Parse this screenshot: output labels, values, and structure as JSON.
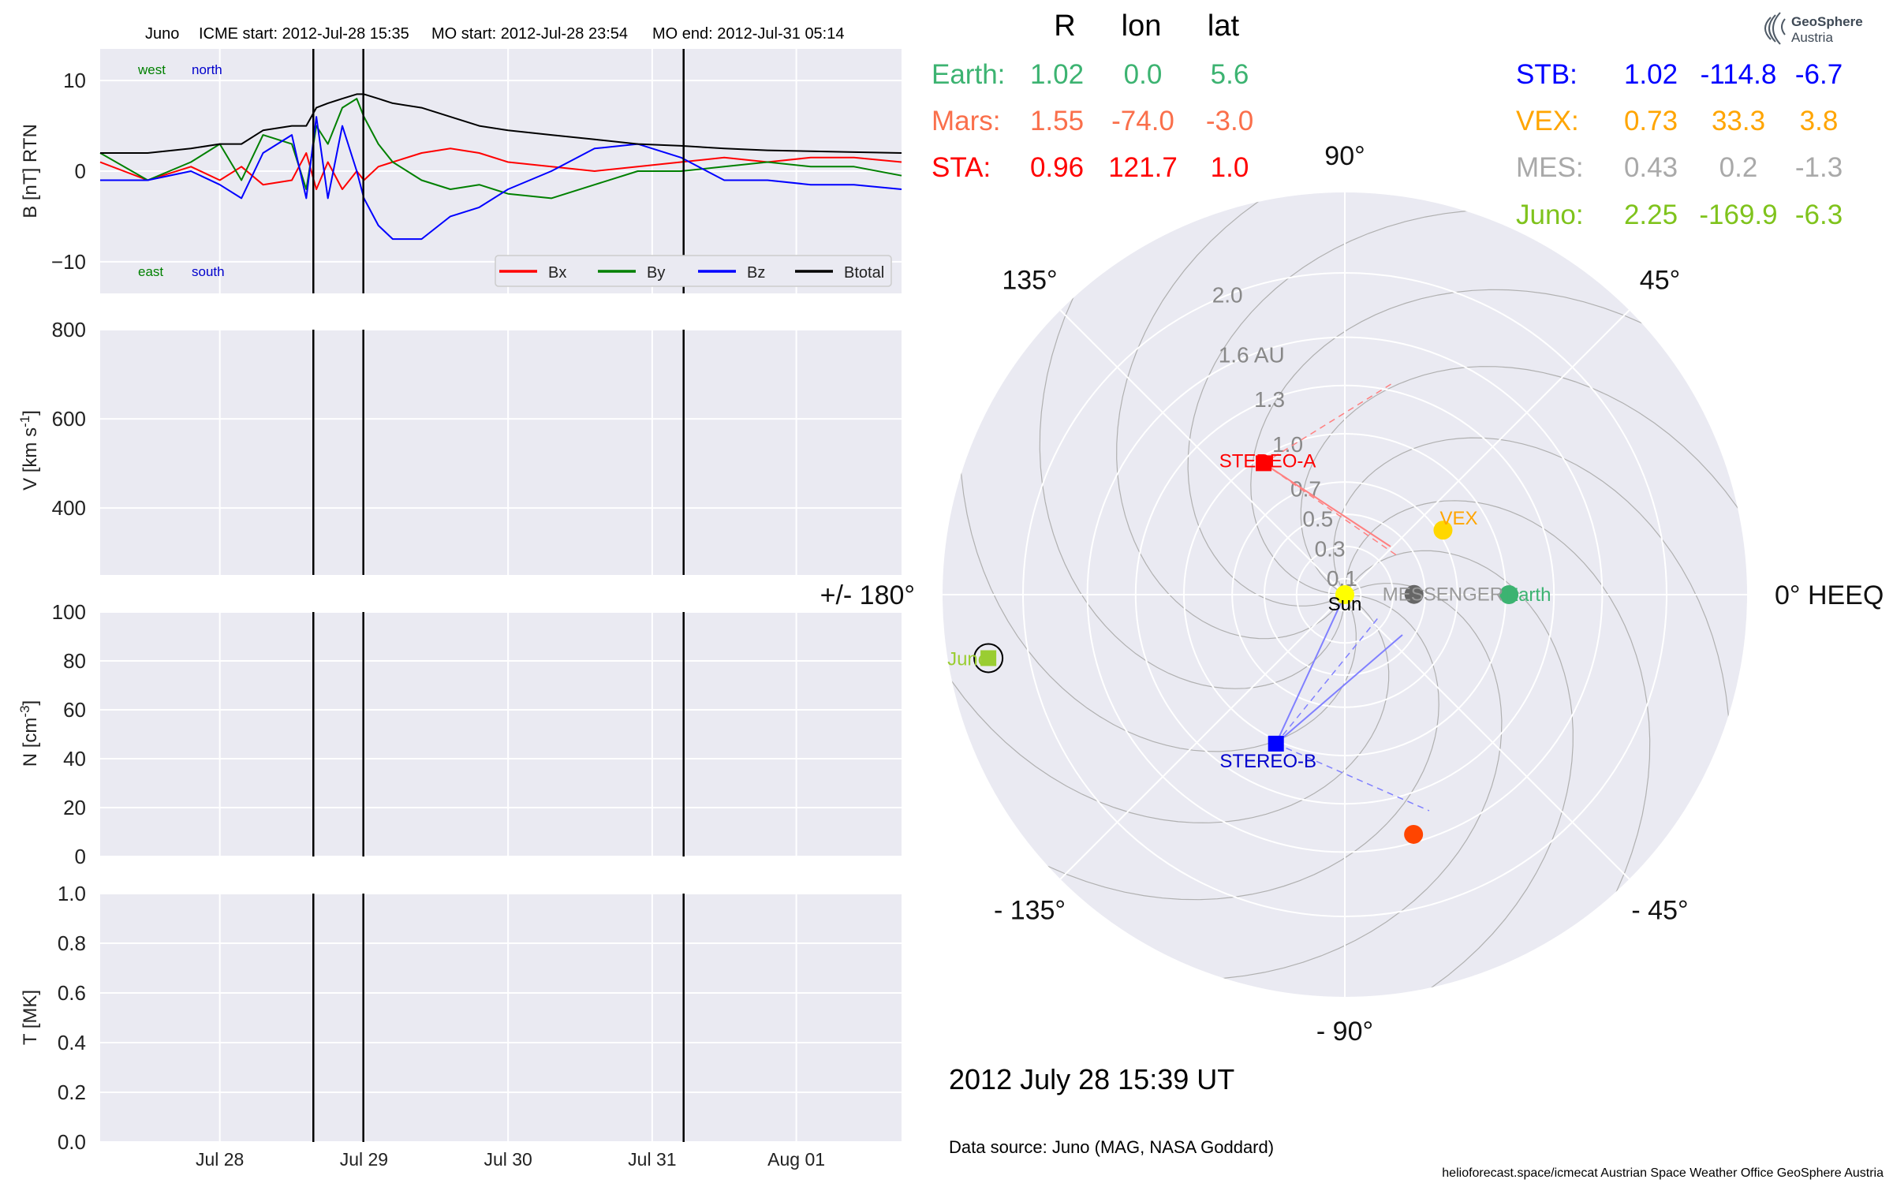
{
  "header": {
    "spacecraft": "Juno",
    "icme_start": "ICME start: 2012-Jul-28 15:35",
    "mo_start": "MO start: 2012-Jul-28 23:54",
    "mo_end": "MO end: 2012-Jul-31 05:14"
  },
  "chart_data": [
    {
      "type": "line",
      "panel": "magnetic-field",
      "ylabel": "B [nT] RTN",
      "ylim": [
        -13.5,
        13.5
      ],
      "yticks": [
        "10",
        "0",
        "−10"
      ],
      "grid": true,
      "legend_position": "lower-right",
      "corner_labels": {
        "west": "west",
        "north": "north",
        "east": "east",
        "south": "south"
      },
      "x_unit": "day of July 2012",
      "xlim": [
        27.17,
        32.73
      ],
      "x": [
        27.17,
        27.5,
        27.8,
        28.0,
        28.15,
        28.3,
        28.5,
        28.6,
        28.67,
        28.75,
        28.85,
        28.95,
        29.0,
        29.1,
        29.2,
        29.4,
        29.6,
        29.8,
        30.0,
        30.3,
        30.6,
        30.9,
        31.2,
        31.5,
        31.8,
        32.1,
        32.4,
        32.73
      ],
      "series": [
        {
          "name": "Bx",
          "color": "#ff0000",
          "values": [
            1.0,
            -1.0,
            0.5,
            -1.0,
            0.5,
            -1.5,
            -1.0,
            2.0,
            -2.0,
            1.0,
            -2.0,
            0.0,
            -1.0,
            0.5,
            1.0,
            2.0,
            2.5,
            2.0,
            1.0,
            0.5,
            0.0,
            0.5,
            1.0,
            1.5,
            1.0,
            1.5,
            1.5,
            1.0
          ]
        },
        {
          "name": "By",
          "color": "#008000",
          "values": [
            2.0,
            -1.0,
            1.0,
            3.0,
            -1.0,
            4.0,
            3.0,
            -2.0,
            5.0,
            3.0,
            7.0,
            8.0,
            6.0,
            3.0,
            1.0,
            -1.0,
            -2.0,
            -1.5,
            -2.5,
            -3.0,
            -1.5,
            0.0,
            0.0,
            0.5,
            1.0,
            0.5,
            0.5,
            -0.5
          ]
        },
        {
          "name": "Bz",
          "color": "#0000ff",
          "values": [
            -1.0,
            -1.0,
            0.0,
            -1.5,
            -3.0,
            2.0,
            4.0,
            -3.0,
            6.0,
            -3.0,
            5.0,
            0.0,
            -3.0,
            -6.0,
            -7.5,
            -7.5,
            -5.0,
            -4.0,
            -2.0,
            0.0,
            2.5,
            3.0,
            1.5,
            -1.0,
            -1.0,
            -1.5,
            -1.5,
            -2.0
          ]
        },
        {
          "name": "Btotal",
          "color": "#000000",
          "values": [
            2.0,
            2.0,
            2.5,
            3.0,
            3.0,
            4.5,
            5.0,
            5.0,
            7.0,
            7.5,
            8.0,
            8.5,
            8.5,
            8.0,
            7.5,
            7.0,
            6.0,
            5.0,
            4.5,
            4.0,
            3.5,
            3.0,
            2.8,
            2.5,
            2.3,
            2.2,
            2.1,
            2.0
          ]
        }
      ]
    },
    {
      "type": "line",
      "panel": "speed",
      "ylabel": "V [km s$^{-1}$]",
      "ylim": [
        250,
        800
      ],
      "yticks": [
        "800",
        "600",
        "400"
      ],
      "grid": true,
      "series": []
    },
    {
      "type": "line",
      "panel": "density",
      "ylabel": "N [cm$^{-3}$]",
      "ylim": [
        0,
        100
      ],
      "yticks": [
        "100",
        "80",
        "60",
        "40",
        "20",
        "0"
      ],
      "grid": true,
      "series": []
    },
    {
      "type": "line",
      "panel": "temperature",
      "ylabel": "T [MK]",
      "ylim": [
        0,
        1
      ],
      "yticks": [
        "1.0",
        "0.8",
        "0.6",
        "0.4",
        "0.2",
        "0.0"
      ],
      "grid": true,
      "series": [],
      "xticks": [
        {
          "day": 28.0,
          "label": "Jul 28"
        },
        {
          "day": 29.0,
          "label": "Jul 29"
        },
        {
          "day": 30.0,
          "label": "Jul 30"
        },
        {
          "day": 31.0,
          "label": "Jul 31"
        },
        {
          "day": 32.0,
          "label": "Aug 01"
        }
      ],
      "event_lines": [
        28.649,
        28.996,
        31.218
      ]
    },
    {
      "type": "scatter",
      "panel": "polar-position-plot",
      "coordinate_system": "0° HEEQ",
      "angle_labels": [
        "90°",
        "45°",
        "0° HEEQ",
        "- 45°",
        "- 90°",
        "- 135°",
        "+/- 180°",
        "135°"
      ],
      "radius_labels": [
        "0.1",
        "0.3",
        "0.5",
        "0.7",
        "1.0",
        "1.3",
        "1.6 AU",
        "2.0"
      ],
      "rmax": 2.5,
      "grid": true,
      "points": [
        {
          "name": "Sun",
          "r": 0.0,
          "lon": 0.0,
          "color": "#ffff00",
          "marker": "circle"
        },
        {
          "name": "MESSENGER",
          "r": 0.43,
          "lon": 0.2,
          "color": "#666666",
          "marker": "circle"
        },
        {
          "name": "VEX",
          "r": 0.73,
          "lon": 33.3,
          "color": "#ffd700",
          "marker": "circle"
        },
        {
          "name": "Earth",
          "r": 1.02,
          "lon": 0.0,
          "color": "#3cb371",
          "marker": "circle"
        },
        {
          "name": "STEREO-A",
          "r": 0.96,
          "lon": 121.7,
          "color": "#ff0000",
          "marker": "square"
        },
        {
          "name": "STEREO-B",
          "r": 1.02,
          "lon": -114.8,
          "color": "#0000ff",
          "marker": "square"
        },
        {
          "name": "",
          "r": 1.55,
          "lon": -74.0,
          "color": "#ff4500",
          "marker": "circle"
        },
        {
          "name": "Juno",
          "r": 2.25,
          "lon": -169.9,
          "color": "#9acd32",
          "marker": "square"
        }
      ]
    }
  ],
  "positions_table": {
    "columns": [
      "R",
      "lon",
      "lat"
    ],
    "left": [
      {
        "name": "Earth:",
        "r": "1.02",
        "lon": "0.0",
        "lat": "5.6",
        "color": "#3cb371"
      },
      {
        "name": "Mars:",
        "r": "1.55",
        "lon": "-74.0",
        "lat": "-3.0",
        "color": "#fa6f4b"
      },
      {
        "name": "STA:",
        "r": "0.96",
        "lon": "121.7",
        "lat": "1.0",
        "color": "#ff0000"
      }
    ],
    "right": [
      {
        "name": "STB:",
        "r": "1.02",
        "lon": "-114.8",
        "lat": "-6.7",
        "color": "#0000ff"
      },
      {
        "name": "VEX:",
        "r": "0.73",
        "lon": "33.3",
        "lat": "3.8",
        "color": "#ffa500"
      },
      {
        "name": "MES:",
        "r": "0.43",
        "lon": "0.2",
        "lat": "-1.3",
        "color": "#a9a9a9"
      },
      {
        "name": "Juno:",
        "r": "2.25",
        "lon": "-169.9",
        "lat": "-6.3",
        "color": "#7fc31c"
      }
    ]
  },
  "logo": {
    "line1": "GeoSphere",
    "line2": "Austria"
  },
  "date_time": "2012 July 28  15:39 UT",
  "data_source": "Data source: Juno (MAG, NASA Goddard)",
  "credits": "helioforecast.space/icmecat   Austrian Space Weather Office   GeoSphere Austria"
}
